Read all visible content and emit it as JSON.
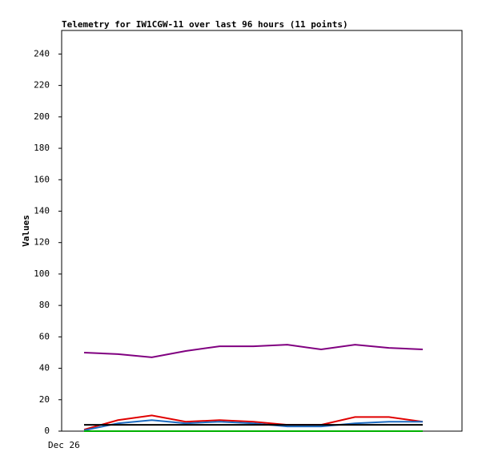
{
  "chart_data": {
    "type": "line",
    "title": "Telemetry for IW1CGW-11 over last 96 hours (11 points)",
    "y_label": "Values",
    "x_start_label": "Dec 26",
    "categories": [
      null,
      null,
      null,
      null,
      null,
      null,
      null,
      null,
      null,
      null,
      null
    ],
    "series": [
      {
        "color": "#800080",
        "values": [
          50,
          49,
          47,
          51,
          54,
          54,
          55,
          52,
          55,
          53,
          52
        ]
      },
      {
        "color": "#e00000",
        "values": [
          1,
          7,
          10,
          6,
          7,
          6,
          4,
          4,
          9,
          9,
          6
        ]
      },
      {
        "color": "#1c6bc0",
        "values": [
          0.5,
          5,
          7,
          5,
          6,
          5,
          3,
          3,
          5,
          6,
          6
        ]
      },
      {
        "color": "#000000",
        "values": [
          4,
          4,
          4,
          4,
          4,
          4,
          4,
          4,
          4,
          4,
          4
        ]
      },
      {
        "color": "#00b000",
        "values": [
          0,
          0,
          0,
          0,
          0,
          0,
          0,
          0,
          0,
          0,
          0
        ]
      }
    ],
    "ylim": [
      0,
      255
    ],
    "yticks": [
      0,
      20,
      40,
      60,
      80,
      100,
      120,
      140,
      160,
      180,
      200,
      220,
      240
    ],
    "grid": false
  }
}
